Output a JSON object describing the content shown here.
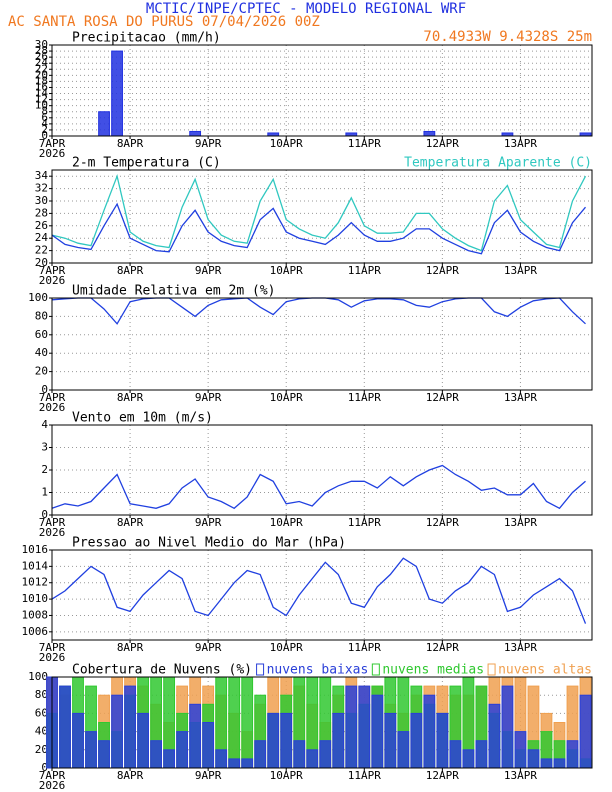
{
  "header": {
    "title": "MCTIC/INPE/CPTEC - MODELO REGIONAL WRF",
    "station": "AC SANTA ROSA DO PURUS   07/04/2026 00Z",
    "location": "70.4933W 9.4328S 25m"
  },
  "chart_data": [
    {
      "type": "bar",
      "title": "Precipitacao (mm/h)",
      "x_sublabel": "2026",
      "x": [
        0,
        4,
        8,
        12,
        16,
        20,
        24,
        28,
        32,
        36,
        40,
        44,
        48,
        52,
        56,
        60,
        64,
        68,
        72,
        76,
        80,
        84,
        88,
        92,
        96,
        100,
        104,
        108,
        112,
        116,
        120,
        124,
        128,
        132,
        136,
        140,
        144,
        148,
        152,
        156,
        160,
        164
      ],
      "values": [
        0,
        0,
        0,
        0,
        8,
        28,
        0,
        0,
        0,
        0,
        0,
        1.5,
        0,
        0,
        0,
        0,
        0,
        1,
        0,
        0,
        0,
        0,
        0,
        1,
        0,
        0,
        0,
        0,
        0,
        1.5,
        0,
        0,
        0,
        0,
        0,
        1,
        0,
        0,
        0,
        0,
        0,
        1
      ],
      "color": "#2030e0",
      "xlim": [
        0,
        166
      ],
      "ylim": [
        0,
        30
      ],
      "yticks": [
        0,
        2,
        4,
        6,
        8,
        10,
        12,
        14,
        16,
        18,
        20,
        22,
        24,
        26,
        28,
        30
      ],
      "xticks": [
        {
          "value": 0,
          "label": "7APR"
        },
        {
          "value": 24,
          "label": "8APR"
        },
        {
          "value": 48,
          "label": "9APR"
        },
        {
          "value": 72,
          "label": "10APR"
        },
        {
          "value": 96,
          "label": "11APR"
        },
        {
          "value": 120,
          "label": "12APR"
        },
        {
          "value": 144,
          "label": "13APR"
        }
      ],
      "grid": true
    },
    {
      "type": "line",
      "title": "2-m Temperatura (C)",
      "x_sublabel": "2026",
      "x": [
        0,
        4,
        8,
        12,
        16,
        20,
        24,
        28,
        32,
        36,
        40,
        44,
        48,
        52,
        56,
        60,
        64,
        68,
        72,
        76,
        80,
        84,
        88,
        92,
        96,
        100,
        104,
        108,
        112,
        116,
        120,
        124,
        128,
        132,
        136,
        140,
        144,
        148,
        152,
        156,
        160,
        164
      ],
      "series": [
        {
          "color": "#2040e0",
          "values": [
            24.5,
            23,
            22.5,
            22.2,
            26,
            29.5,
            24,
            23,
            22,
            21.8,
            26,
            28.5,
            25,
            23.5,
            22.8,
            22.5,
            27,
            28.8,
            25,
            24,
            23.5,
            23,
            24.5,
            26.5,
            24.5,
            23.5,
            23.5,
            24,
            25.5,
            25.5,
            24,
            23,
            22,
            21.5,
            26.5,
            28.5,
            25,
            23.5,
            22.5,
            22,
            26.5,
            29
          ]
        },
        {
          "name": "Temperatura Aparente (C)",
          "color": "#30c8c0",
          "values": [
            24.5,
            24,
            23.2,
            22.8,
            28.5,
            34,
            25,
            23.5,
            22.8,
            22.5,
            29,
            33.5,
            27,
            24.5,
            23.5,
            23.2,
            30,
            33.5,
            27,
            25.5,
            24.5,
            24,
            26.5,
            30.5,
            26,
            24.8,
            24.8,
            25,
            28,
            28,
            25.5,
            24,
            22.8,
            22,
            30,
            32.5,
            27,
            25,
            23,
            22.5,
            30,
            34
          ]
        }
      ],
      "xlim": [
        0,
        166
      ],
      "ylim": [
        20,
        35
      ],
      "yticks": [
        20,
        22,
        24,
        26,
        28,
        30,
        32,
        34
      ],
      "xticks": [
        {
          "value": 0,
          "label": "7APR"
        },
        {
          "value": 24,
          "label": "8APR"
        },
        {
          "value": 48,
          "label": "9APR"
        },
        {
          "value": 72,
          "label": "10APR"
        },
        {
          "value": 96,
          "label": "11APR"
        },
        {
          "value": 120,
          "label": "12APR"
        },
        {
          "value": 144,
          "label": "13APR"
        }
      ],
      "grid": true
    },
    {
      "type": "line",
      "title": "Umidade Relativa em 2m (%)",
      "x_sublabel": "2026",
      "x": [
        0,
        4,
        8,
        12,
        16,
        20,
        24,
        28,
        32,
        36,
        40,
        44,
        48,
        52,
        56,
        60,
        64,
        68,
        72,
        76,
        80,
        84,
        88,
        92,
        96,
        100,
        104,
        108,
        112,
        116,
        120,
        124,
        128,
        132,
        136,
        140,
        144,
        148,
        152,
        156,
        160,
        164
      ],
      "series": [
        {
          "color": "#2040e0",
          "values": [
            98,
            99,
            100,
            100,
            88,
            72,
            96,
            99,
            100,
            100,
            90,
            80,
            92,
            98,
            99,
            100,
            90,
            82,
            96,
            99,
            100,
            100,
            98,
            90,
            97,
            99,
            99,
            98,
            92,
            90,
            96,
            99,
            100,
            100,
            85,
            80,
            90,
            97,
            99,
            100,
            85,
            72
          ]
        }
      ],
      "xlim": [
        0,
        166
      ],
      "ylim": [
        0,
        100
      ],
      "yticks": [
        0,
        20,
        40,
        60,
        80,
        100
      ],
      "xticks": [
        {
          "value": 0,
          "label": "7APR"
        },
        {
          "value": 24,
          "label": "8APR"
        },
        {
          "value": 48,
          "label": "9APR"
        },
        {
          "value": 72,
          "label": "10APR"
        },
        {
          "value": 96,
          "label": "11APR"
        },
        {
          "value": 120,
          "label": "12APR"
        },
        {
          "value": 144,
          "label": "13APR"
        }
      ],
      "grid": true
    },
    {
      "type": "line",
      "title": "Vento em 10m (m/s)",
      "x_sublabel": "2026",
      "x": [
        0,
        4,
        8,
        12,
        16,
        20,
        24,
        28,
        32,
        36,
        40,
        44,
        48,
        52,
        56,
        60,
        64,
        68,
        72,
        76,
        80,
        84,
        88,
        92,
        96,
        100,
        104,
        108,
        112,
        116,
        120,
        124,
        128,
        132,
        136,
        140,
        144,
        148,
        152,
        156,
        160,
        164
      ],
      "series": [
        {
          "color": "#2040e0",
          "values": [
            0.3,
            0.5,
            0.4,
            0.6,
            1.2,
            1.8,
            0.5,
            0.4,
            0.3,
            0.5,
            1.2,
            1.6,
            0.8,
            0.6,
            0.3,
            0.8,
            1.8,
            1.5,
            0.5,
            0.6,
            0.4,
            1.0,
            1.3,
            1.5,
            1.5,
            1.2,
            1.7,
            1.3,
            1.7,
            2.0,
            2.2,
            1.8,
            1.5,
            1.1,
            1.2,
            0.9,
            0.9,
            1.4,
            0.6,
            0.3,
            1.0,
            1.5
          ]
        }
      ],
      "xlim": [
        0,
        166
      ],
      "ylim": [
        0,
        4
      ],
      "yticks": [
        0,
        1,
        2,
        3,
        4
      ],
      "xticks": [
        {
          "value": 0,
          "label": "7APR"
        },
        {
          "value": 24,
          "label": "8APR"
        },
        {
          "value": 48,
          "label": "9APR"
        },
        {
          "value": 72,
          "label": "10APR"
        },
        {
          "value": 96,
          "label": "11APR"
        },
        {
          "value": 120,
          "label": "12APR"
        },
        {
          "value": 144,
          "label": "13APR"
        }
      ],
      "grid": true
    },
    {
      "type": "line",
      "title": "Pressao ao Nivel Medio do Mar (hPa)",
      "x_sublabel": "2026",
      "x": [
        0,
        4,
        8,
        12,
        16,
        20,
        24,
        28,
        32,
        36,
        40,
        44,
        48,
        52,
        56,
        60,
        64,
        68,
        72,
        76,
        80,
        84,
        88,
        92,
        96,
        100,
        104,
        108,
        112,
        116,
        120,
        124,
        128,
        132,
        136,
        140,
        144,
        148,
        152,
        156,
        160,
        164
      ],
      "series": [
        {
          "color": "#2040e0",
          "values": [
            1010,
            1011,
            1012.5,
            1014,
            1013,
            1009,
            1008.5,
            1010.5,
            1012,
            1013.5,
            1012.5,
            1008.5,
            1008,
            1010,
            1012,
            1013.5,
            1013,
            1009,
            1008,
            1010.5,
            1012.5,
            1014.5,
            1013,
            1009.5,
            1009,
            1011.5,
            1013,
            1015,
            1014,
            1010,
            1009.5,
            1011,
            1012,
            1014,
            1013,
            1008.5,
            1009,
            1010.5,
            1011.5,
            1012.5,
            1011,
            1007
          ]
        }
      ],
      "xlim": [
        0,
        166
      ],
      "ylim": [
        1005,
        1016
      ],
      "yticks": [
        1006,
        1008,
        1010,
        1012,
        1014,
        1016
      ],
      "xticks": [
        {
          "value": 0,
          "label": "7APR"
        },
        {
          "value": 24,
          "label": "8APR"
        },
        {
          "value": 48,
          "label": "9APR"
        },
        {
          "value": 72,
          "label": "10APR"
        },
        {
          "value": 96,
          "label": "11APR"
        },
        {
          "value": 120,
          "label": "12APR"
        },
        {
          "value": 144,
          "label": "13APR"
        }
      ],
      "grid": true
    },
    {
      "type": "bar",
      "title": "Cobertura de Nuvens (%)",
      "x_sublabel": "2026",
      "x": [
        0,
        4,
        8,
        12,
        16,
        20,
        24,
        28,
        32,
        36,
        40,
        44,
        48,
        52,
        56,
        60,
        64,
        68,
        72,
        76,
        80,
        84,
        88,
        92,
        96,
        100,
        104,
        108,
        112,
        116,
        120,
        124,
        128,
        132,
        136,
        140,
        144,
        148,
        152,
        156,
        160,
        164
      ],
      "series": [
        {
          "name": "nuvens baixas",
          "color": "#2a3fd8",
          "values": [
            100,
            90,
            60,
            40,
            30,
            80,
            90,
            60,
            30,
            20,
            40,
            70,
            50,
            20,
            10,
            10,
            30,
            60,
            60,
            30,
            20,
            30,
            60,
            90,
            90,
            80,
            60,
            40,
            60,
            80,
            60,
            30,
            20,
            30,
            70,
            90,
            40,
            20,
            10,
            10,
            30,
            80
          ]
        },
        {
          "name": "nuvens medias",
          "color": "#30c830",
          "values": [
            60,
            90,
            100,
            90,
            50,
            40,
            80,
            100,
            100,
            100,
            60,
            50,
            70,
            100,
            100,
            100,
            80,
            60,
            80,
            100,
            100,
            100,
            90,
            60,
            70,
            90,
            100,
            100,
            90,
            70,
            60,
            90,
            100,
            90,
            60,
            40,
            20,
            30,
            40,
            30,
            20,
            10
          ]
        },
        {
          "name": "nuvens altas",
          "color": "#f0a050",
          "values": [
            100,
            80,
            60,
            40,
            80,
            100,
            100,
            90,
            70,
            50,
            90,
            100,
            90,
            80,
            60,
            40,
            70,
            100,
            100,
            90,
            70,
            50,
            80,
            100,
            90,
            90,
            70,
            60,
            80,
            90,
            90,
            80,
            80,
            90,
            100,
            100,
            100,
            90,
            60,
            50,
            90,
            100
          ]
        }
      ],
      "xlim": [
        0,
        166
      ],
      "ylim": [
        0,
        100
      ],
      "yticks": [
        0,
        20,
        40,
        60,
        80,
        100
      ],
      "xticks": [
        {
          "value": 0,
          "label": "7APR"
        },
        {
          "value": 24,
          "label": "8APR"
        },
        {
          "value": 48,
          "label": "9APR"
        },
        {
          "value": 72,
          "label": "10APR"
        },
        {
          "value": 96,
          "label": "11APR"
        },
        {
          "value": 120,
          "label": "12APR"
        },
        {
          "value": 144,
          "label": "13APR"
        }
      ],
      "grid": true
    }
  ]
}
